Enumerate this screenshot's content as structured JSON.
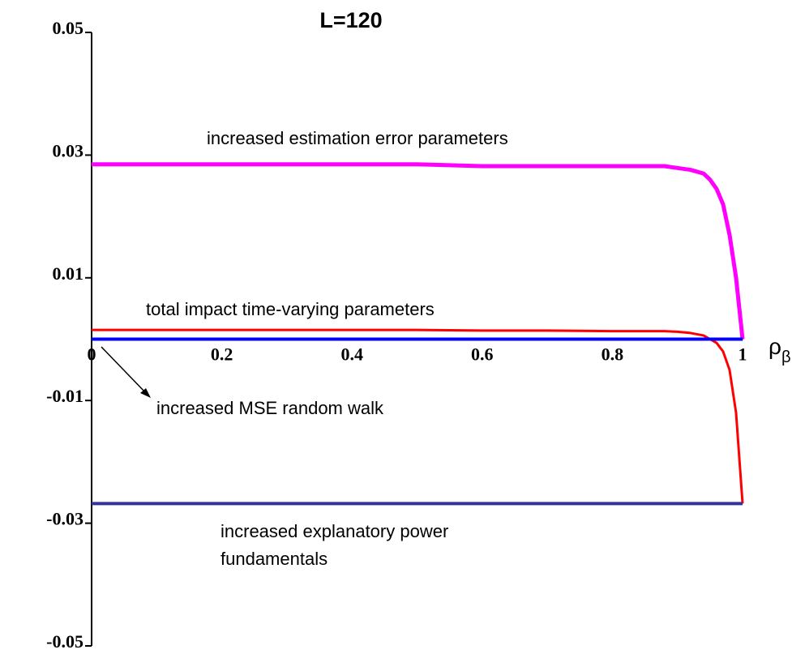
{
  "chart_data": {
    "type": "line",
    "title": "L=120",
    "xlabel": [
      "ρ",
      "β"
    ],
    "x": [
      0,
      0.1,
      0.2,
      0.3,
      0.4,
      0.5,
      0.6,
      0.7,
      0.8,
      0.88,
      0.9,
      0.92,
      0.94,
      0.95,
      0.96,
      0.97,
      0.98,
      0.99,
      1
    ],
    "series": [
      {
        "color": "#ff00ff",
        "values": [
          0.0285,
          0.0285,
          0.0285,
          0.0285,
          0.0285,
          0.0285,
          0.0282,
          0.0282,
          0.0282,
          0.0282,
          0.0279,
          0.0276,
          0.027,
          0.026,
          0.0245,
          0.022,
          0.017,
          0.01,
          0
        ]
      },
      {
        "color": "#ff0000",
        "values": [
          0.0015,
          0.0015,
          0.0015,
          0.0015,
          0.0015,
          0.0015,
          0.0014,
          0.0014,
          0.0013,
          0.0013,
          0.0012,
          0.001,
          0.0006,
          0,
          -0.0006,
          -0.002,
          -0.005,
          -0.012,
          -0.0268
        ]
      },
      {
        "color": "#0000ff",
        "values": [
          0,
          0,
          0,
          0,
          0,
          0,
          0,
          0,
          0,
          0,
          0,
          0,
          0,
          0,
          0,
          0,
          0,
          0,
          0
        ]
      },
      {
        "color": "#333399",
        "values": [
          -0.0268,
          -0.0268,
          -0.0268,
          -0.0268,
          -0.0268,
          -0.0268,
          -0.0268,
          -0.0268,
          -0.0268,
          -0.0268,
          -0.0268,
          -0.0268,
          -0.0268,
          -0.0268,
          -0.0268,
          -0.0268,
          -0.0268,
          -0.0268,
          -0.0268
        ]
      }
    ],
    "xlim": [
      0,
      1
    ],
    "xticks": [
      0,
      0.2,
      0.4,
      0.6,
      0.8,
      1
    ],
    "ylim": [
      -0.05,
      0.05
    ],
    "yticks": [
      -0.05,
      -0.03,
      -0.01,
      0.01,
      0.03,
      0.05
    ],
    "annotations": [
      "increased estimation error parameters",
      "total impact time-varying parameters",
      "increased MSE random walk",
      "increased explanatory power",
      "fundamentals"
    ]
  }
}
